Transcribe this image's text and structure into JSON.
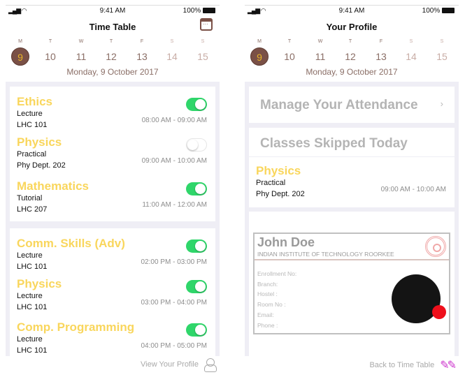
{
  "status": {
    "time": "9:41 AM",
    "battery": "100%",
    "signal": "signal-icon",
    "wifi": "wifi-icon"
  },
  "week": {
    "days": [
      {
        "l": "M",
        "n": "9"
      },
      {
        "l": "T",
        "n": "10"
      },
      {
        "l": "W",
        "n": "11"
      },
      {
        "l": "T",
        "n": "12"
      },
      {
        "l": "F",
        "n": "13"
      },
      {
        "l": "S",
        "n": "14"
      },
      {
        "l": "S",
        "n": "15"
      }
    ],
    "selected": "9",
    "date": "Monday, 9 October 2017"
  },
  "timetable": {
    "title": "Time Table",
    "card1": [
      {
        "subject": "Ethics",
        "type": "Lecture",
        "room": "LHC 101",
        "time": "08:00 AM - 09:00 AM",
        "attending": true
      },
      {
        "subject": "Physics",
        "type": "Practical",
        "room": "Phy Dept. 202",
        "time": "09:00 AM - 10:00 AM",
        "attending": false
      },
      {
        "subject": "Mathematics",
        "type": "Tutorial",
        "room": "LHC 207",
        "time": "11:00 AM - 12:00 AM",
        "attending": true
      }
    ],
    "card2": [
      {
        "subject": "Comm. Skills (Adv)",
        "type": "Lecture",
        "room": "LHC 101",
        "time": "02:00 PM - 03:00 PM",
        "attending": true
      },
      {
        "subject": "Physics",
        "type": "Lecture",
        "room": "LHC 101",
        "time": "03:00 PM - 04:00 PM",
        "attending": true
      },
      {
        "subject": "Comp. Programming",
        "type": "Lecture",
        "room": "LHC 101",
        "time": "04:00 PM - 05:00 PM",
        "attending": true
      }
    ],
    "footer": "View Your Profile"
  },
  "profile": {
    "title": "Your Profile",
    "manage": "Manage Your Attendance",
    "skipped_heading": "Classes Skipped Today",
    "skipped": {
      "subject": "Physics",
      "type": "Practical",
      "room": "Phy Dept. 202",
      "time": "09:00 AM - 10:00 AM"
    },
    "id": {
      "name": "John Doe",
      "institute": "INDIAN INSTITUTE OF TECHNOLOGY ROORKEE",
      "fields": [
        "Enrollment No:",
        "Branch:",
        "Hostel :",
        "Room No :",
        "Email:",
        "Phone :"
      ]
    },
    "footer": "Back to Time Table"
  },
  "colors": {
    "accent": "#7a5046",
    "subject": "#f9d65c",
    "toggle_on": "#2fd66a",
    "status_dot": "#ee0f1b"
  }
}
